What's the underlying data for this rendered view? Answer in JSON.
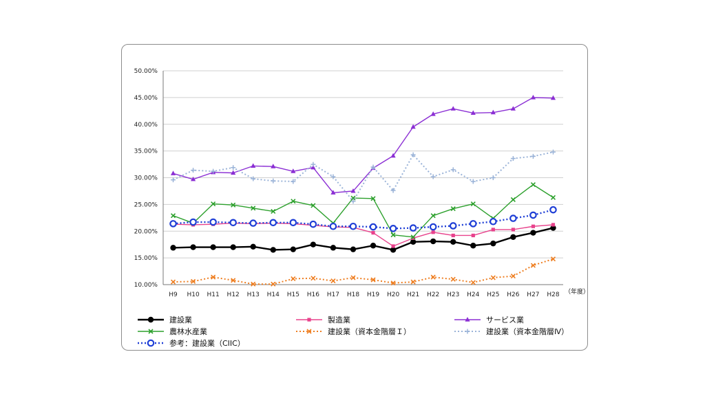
{
  "chart_data": {
    "type": "line",
    "categories": [
      "H9",
      "H10",
      "H11",
      "H12",
      "H13",
      "H14",
      "H15",
      "H16",
      "H17",
      "H18",
      "H19",
      "H20",
      "H21",
      "H22",
      "H23",
      "H24",
      "H25",
      "H26",
      "H27",
      "H28"
    ],
    "x_unit_label": "（年度）",
    "y_ticks": [
      "10.00%",
      "15.00%",
      "20.00%",
      "25.00%",
      "30.00%",
      "35.00%",
      "40.00%",
      "45.00%",
      "50.00%"
    ],
    "ylim": [
      10,
      50
    ],
    "grid": true,
    "legend_position": "bottom",
    "series": [
      {
        "name": "建設業",
        "color": "#000000",
        "marker": "circle-filled",
        "dash": "solid",
        "width": 2.4,
        "values": [
          16.9,
          17.0,
          17.0,
          17.0,
          17.1,
          16.5,
          16.6,
          17.5,
          16.9,
          16.6,
          17.3,
          16.5,
          18.0,
          18.1,
          18.0,
          17.3,
          17.7,
          18.9,
          19.7,
          20.6
        ]
      },
      {
        "name": "製造業",
        "color": "#e8428c",
        "marker": "square",
        "dash": "solid",
        "width": 1.4,
        "values": [
          21.3,
          21.2,
          21.3,
          21.5,
          21.4,
          21.5,
          21.4,
          21.1,
          20.8,
          20.7,
          19.7,
          17.2,
          18.7,
          19.8,
          19.2,
          19.2,
          20.3,
          20.3,
          20.9,
          21.2
        ]
      },
      {
        "name": "サービス業",
        "color": "#8b2fd4",
        "marker": "triangle",
        "dash": "solid",
        "width": 1.4,
        "values": [
          30.8,
          29.7,
          31.0,
          30.9,
          32.2,
          32.1,
          31.2,
          31.9,
          27.2,
          27.5,
          31.8,
          34.1,
          39.5,
          41.9,
          42.9,
          42.1,
          42.2,
          42.9,
          45.0,
          44.9
        ]
      },
      {
        "name": "農林水産業",
        "color": "#2ca02c",
        "marker": "x",
        "dash": "solid",
        "width": 1.4,
        "values": [
          22.9,
          21.5,
          25.1,
          24.9,
          24.3,
          23.7,
          25.6,
          24.8,
          21.5,
          26.2,
          26.1,
          19.3,
          18.9,
          22.9,
          24.2,
          25.1,
          22.4,
          25.9,
          28.7,
          26.3
        ]
      },
      {
        "name": "建設業（資本金階層Ｉ）",
        "color": "#ee7d1f",
        "marker": "x",
        "dash": "dot",
        "width": 2,
        "values": [
          10.5,
          10.6,
          11.4,
          10.8,
          10.1,
          10.1,
          11.1,
          11.2,
          10.7,
          11.3,
          10.9,
          10.3,
          10.5,
          11.4,
          11.0,
          10.4,
          11.3,
          11.6,
          13.6,
          14.8
        ]
      },
      {
        "name": "建設業（資本金階層Ⅳ）",
        "color": "#9ab3d8",
        "marker": "plus",
        "dash": "dot",
        "width": 2,
        "values": [
          29.6,
          31.4,
          31.2,
          31.9,
          29.8,
          29.4,
          29.3,
          32.5,
          30.2,
          25.6,
          32.0,
          27.6,
          34.3,
          30.2,
          31.5,
          29.3,
          30.0,
          33.6,
          34.0,
          34.8
        ]
      },
      {
        "name": "参考：建設業（CIIC）",
        "color": "#1f3fd6",
        "marker": "circle-open",
        "dash": "dot",
        "width": 2.4,
        "values": [
          21.4,
          21.7,
          21.7,
          21.6,
          21.5,
          21.6,
          21.6,
          21.3,
          20.9,
          20.9,
          20.8,
          20.5,
          20.6,
          20.8,
          21.0,
          21.4,
          21.8,
          22.4,
          23.0,
          24.0
        ]
      }
    ]
  }
}
